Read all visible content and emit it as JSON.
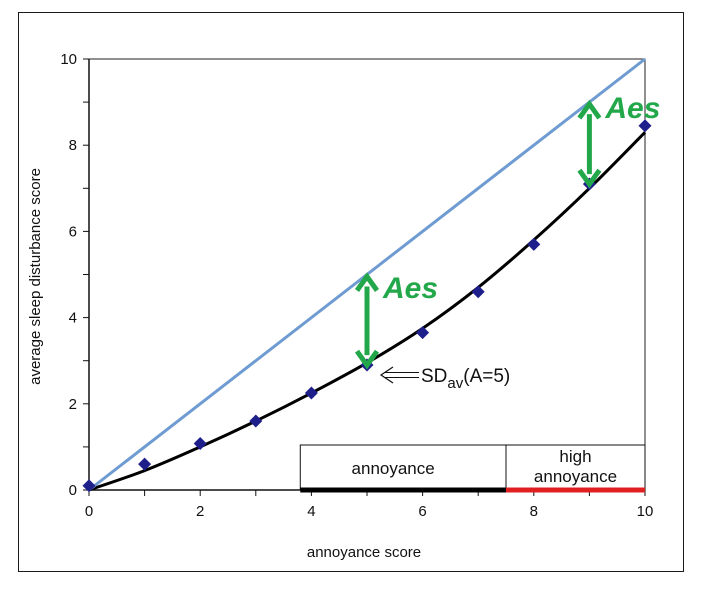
{
  "chart_data": {
    "type": "scatter",
    "xlabel": "annoyance score",
    "ylabel": "average sleep disturbance score",
    "xlim": [
      0,
      10
    ],
    "ylim": [
      0,
      10
    ],
    "x_ticks": [
      "0",
      "2",
      "4",
      "6",
      "8",
      "10"
    ],
    "y_ticks": [
      "0",
      "2",
      "4",
      "6",
      "8",
      "10"
    ],
    "grid": false,
    "series": [
      {
        "type": "scatter",
        "color": "#1f1f8c",
        "x": [
          0,
          1,
          2,
          3,
          4,
          5,
          6,
          7,
          8,
          9,
          10
        ],
        "y": [
          0.1,
          0.6,
          1.08,
          1.6,
          2.25,
          2.9,
          3.65,
          4.6,
          5.7,
          7.1,
          8.45
        ]
      },
      {
        "type": "line",
        "color": "#000000",
        "x": [
          0,
          1,
          2,
          3,
          4,
          5,
          6,
          7,
          8,
          9,
          10
        ],
        "y": [
          0,
          0.45,
          1.0,
          1.6,
          2.25,
          2.95,
          3.75,
          4.7,
          5.8,
          7.0,
          8.3
        ]
      },
      {
        "type": "line",
        "color": "#6e9bd1",
        "x": [
          0,
          10
        ],
        "y": [
          0,
          10
        ]
      }
    ],
    "annotations": {
      "aes_label": "Aes",
      "aes_color": "#22a84a",
      "aes_arrows": [
        {
          "x": 5,
          "y_from": 2.85,
          "y_to": 5.0
        },
        {
          "x": 9,
          "y_from": 7.05,
          "y_to": 9.0
        }
      ],
      "sd_label_main": "SD",
      "sd_label_sub": "av",
      "sd_label_tail": "(A=5)",
      "sd_point": {
        "x": 5,
        "y": 2.9
      }
    },
    "bands": [
      {
        "label": [
          "annoyance"
        ],
        "x_from": 3.8,
        "x_to": 7.5,
        "line_color": "#000000"
      },
      {
        "label": [
          "high",
          "annoyance"
        ],
        "x_from": 7.5,
        "x_to": 10,
        "line_color": "#e02020"
      }
    ]
  }
}
